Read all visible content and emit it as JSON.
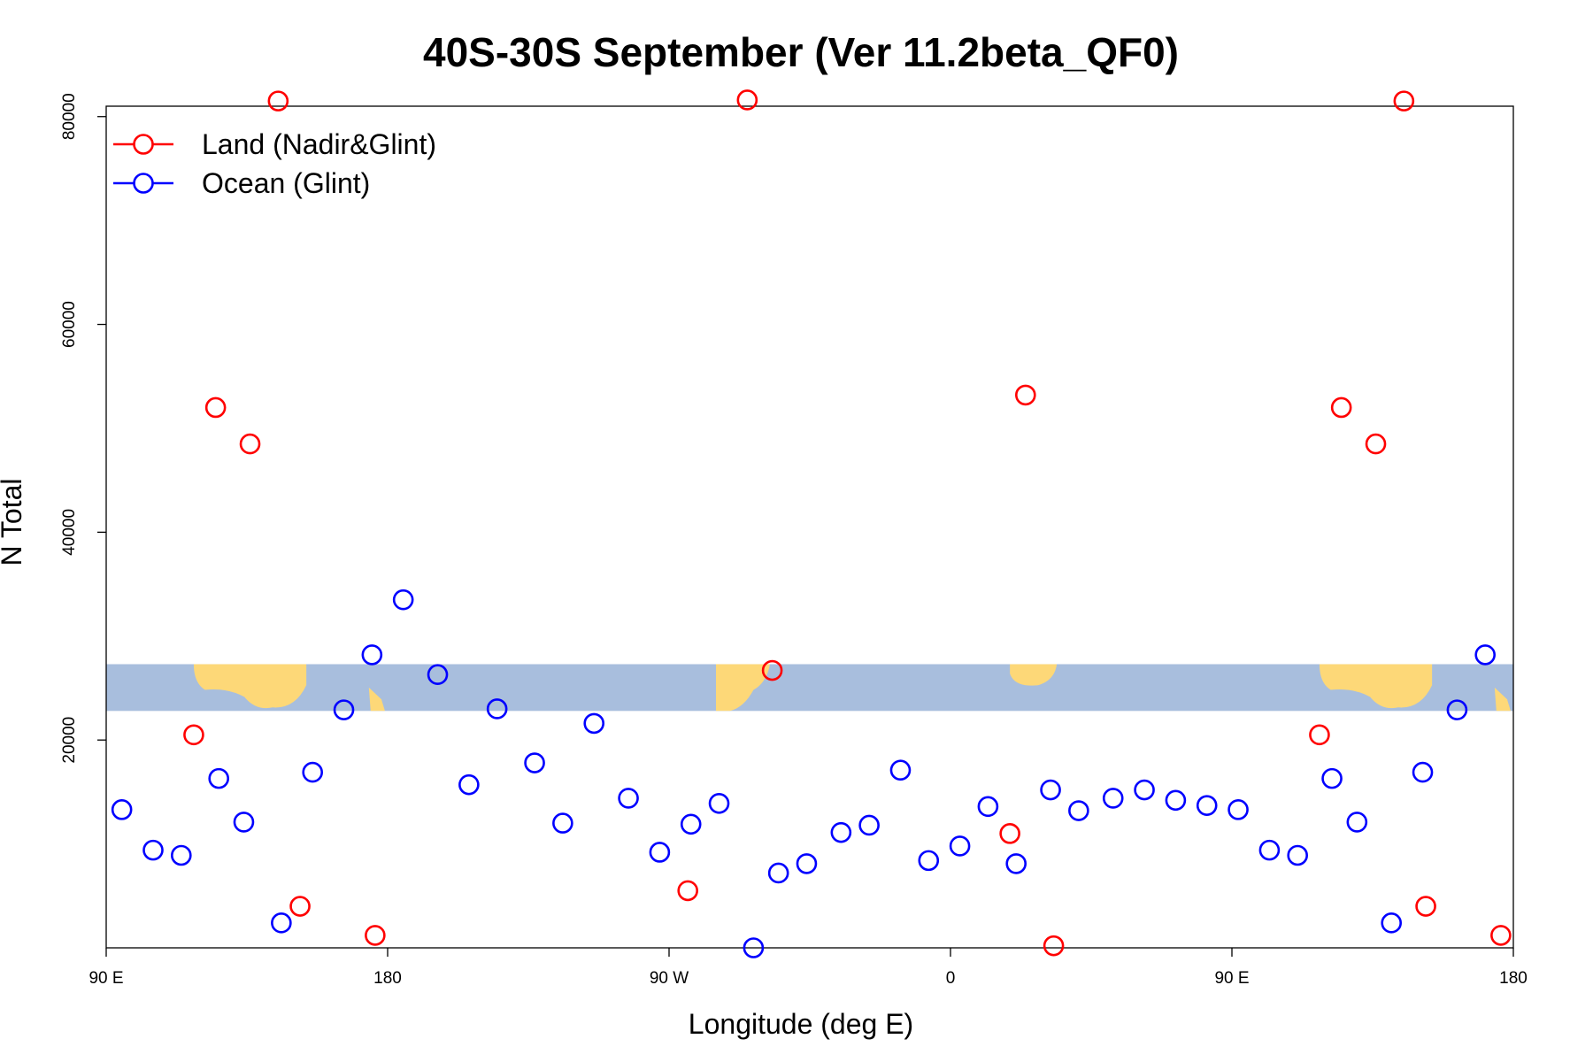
{
  "chart_data": {
    "type": "scatter",
    "title": "40S-30S September (Ver 11.2beta_QF0)",
    "xlabel": "Longitude (deg E)",
    "ylabel": "N Total",
    "xlim": [
      90,
      540
    ],
    "ylim": [
      0,
      81000
    ],
    "x_ticks": [
      {
        "value": 90,
        "label": "90 E"
      },
      {
        "value": 180,
        "label": "180"
      },
      {
        "value": 270,
        "label": "90 W"
      },
      {
        "value": 360,
        "label": "0"
      },
      {
        "value": 450,
        "label": "90 E"
      },
      {
        "value": 540,
        "label": "180"
      }
    ],
    "y_ticks": [
      20000,
      40000,
      60000,
      80000
    ],
    "legend_position": "top-left",
    "grid": false,
    "series": [
      {
        "name": "Land (Nadir&Glint)",
        "color": "#ff0000",
        "points": [
          [
            118,
            20500
          ],
          [
            125,
            52000
          ],
          [
            136,
            48500
          ],
          [
            145,
            81500
          ],
          [
            152,
            4000
          ],
          [
            176,
            1200
          ],
          [
            295,
            81600
          ],
          [
            276,
            5500
          ],
          [
            303,
            26700
          ],
          [
            379,
            11000
          ],
          [
            384,
            53200
          ],
          [
            393,
            200
          ],
          [
            478,
            20500
          ],
          [
            485,
            52000
          ],
          [
            496,
            48500
          ],
          [
            505,
            81500
          ],
          [
            512,
            4000
          ],
          [
            536,
            1200
          ]
        ]
      },
      {
        "name": "Ocean (Glint)",
        "color": "#0000ff",
        "points": [
          [
            95,
            13300
          ],
          [
            105,
            9400
          ],
          [
            114,
            8900
          ],
          [
            126,
            16300
          ],
          [
            134,
            12100
          ],
          [
            146,
            2400
          ],
          [
            156,
            16900
          ],
          [
            166,
            22900
          ],
          [
            175,
            28200
          ],
          [
            185,
            33500
          ],
          [
            196,
            26300
          ],
          [
            206,
            15700
          ],
          [
            215,
            23000
          ],
          [
            227,
            17800
          ],
          [
            236,
            12000
          ],
          [
            246,
            21600
          ],
          [
            257,
            14400
          ],
          [
            267,
            9200
          ],
          [
            277,
            11900
          ],
          [
            286,
            13900
          ],
          [
            297,
            0
          ],
          [
            305,
            7200
          ],
          [
            314,
            8100
          ],
          [
            325,
            11100
          ],
          [
            334,
            11800
          ],
          [
            344,
            17100
          ],
          [
            353,
            8400
          ],
          [
            363,
            9800
          ],
          [
            372,
            13600
          ],
          [
            381,
            8100
          ],
          [
            392,
            15200
          ],
          [
            401,
            13200
          ],
          [
            412,
            14400
          ],
          [
            422,
            15200
          ],
          [
            432,
            14200
          ],
          [
            442,
            13700
          ],
          [
            452,
            13300
          ],
          [
            462,
            9400
          ],
          [
            471,
            8900
          ],
          [
            482,
            16300
          ],
          [
            490,
            12100
          ],
          [
            501,
            2400
          ],
          [
            511,
            16900
          ],
          [
            522,
            22900
          ],
          [
            531,
            28200
          ]
        ]
      }
    ],
    "background_band": {
      "ylim": [
        22800,
        27300
      ],
      "ocean_color": "#a8bedd",
      "land_color": "#fdd878"
    }
  }
}
